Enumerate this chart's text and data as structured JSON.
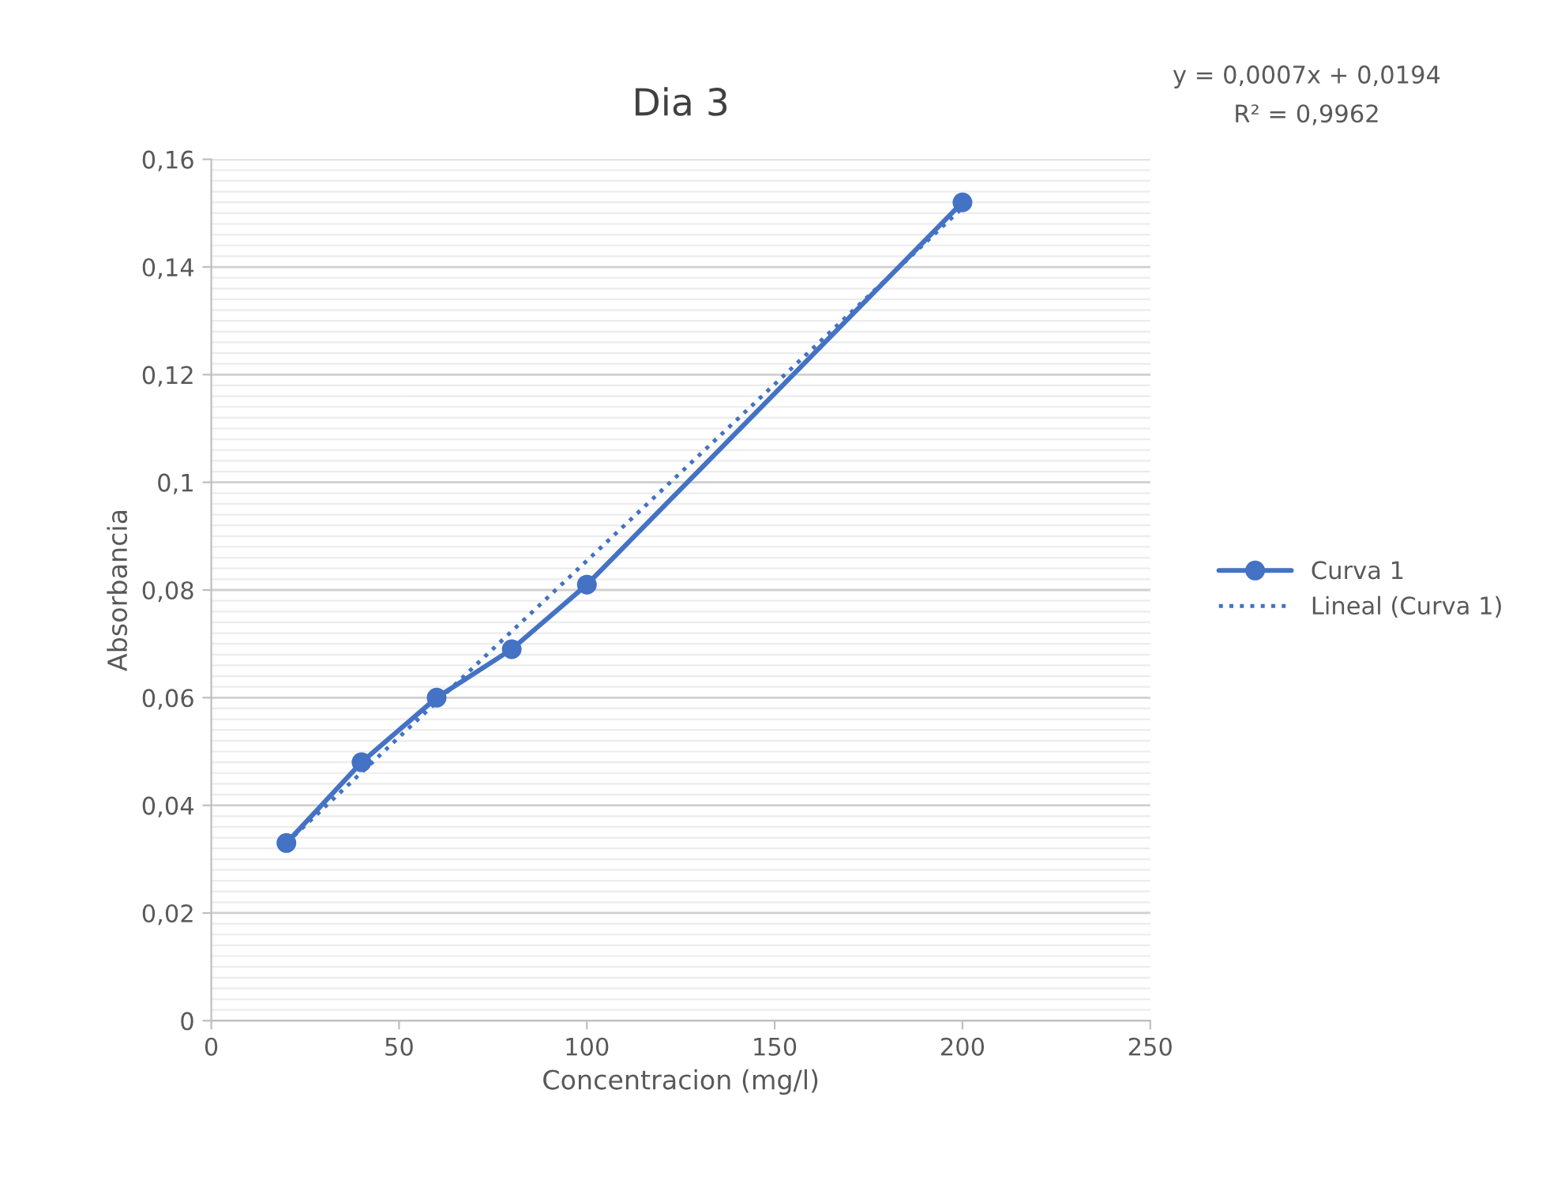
{
  "chart_data": {
    "type": "line",
    "title": "Dia 3",
    "xlabel": "Concentracion (mg/l)",
    "ylabel": "Absorbancia",
    "xlim": [
      0,
      250
    ],
    "xticks": [
      0,
      50,
      100,
      150,
      200,
      250
    ],
    "ylim": [
      0,
      0.16
    ],
    "yticks": [
      {
        "value": 0,
        "label": "0"
      },
      {
        "value": 0.02,
        "label": "0,02"
      },
      {
        "value": 0.04,
        "label": "0,04"
      },
      {
        "value": 0.06,
        "label": "0,06"
      },
      {
        "value": 0.08,
        "label": "0,08"
      },
      {
        "value": 0.1,
        "label": "0,1"
      },
      {
        "value": 0.12,
        "label": "0,12"
      },
      {
        "value": 0.14,
        "label": "0,14"
      },
      {
        "value": 0.16,
        "label": "0,16"
      }
    ],
    "grid": "y",
    "legend": "right",
    "series": [
      {
        "name": "Curva 1",
        "color": "#4472c4",
        "x": [
          20,
          40,
          60,
          80,
          100,
          200
        ],
        "values": [
          0.033,
          0.048,
          0.06,
          0.069,
          0.081,
          0.152
        ],
        "marker": "circle",
        "line_style": "solid"
      },
      {
        "name": "Lineal (Curva 1)",
        "color": "#4472c4",
        "x": [
          20,
          200
        ],
        "values": [
          0.033,
          0.151
        ],
        "marker": "none",
        "line_style": "dotted"
      }
    ],
    "annotations": [
      "y = 0,0007x + 0,0194",
      "R² = 0,9962"
    ]
  }
}
